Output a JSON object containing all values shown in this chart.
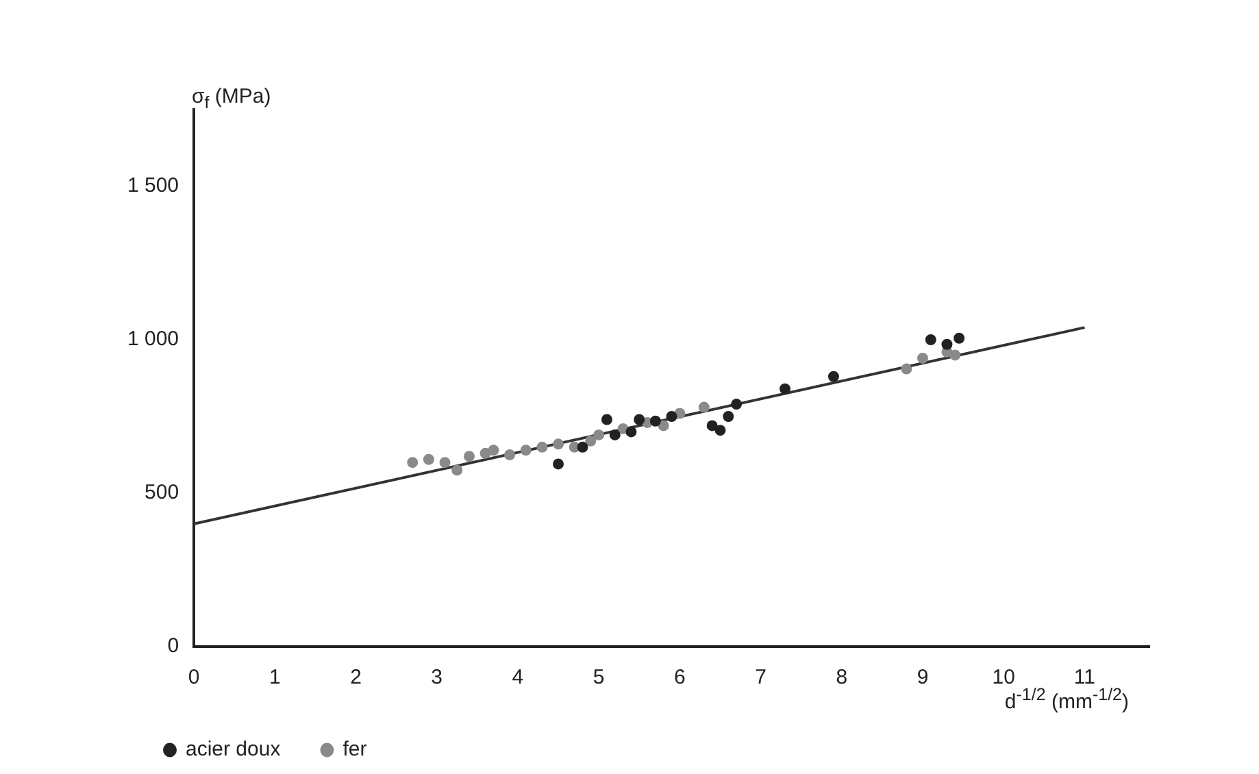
{
  "chart_data": {
    "type": "scatter",
    "xlabel": "d$^{-1/2}$ (mm$^{-1/2}$)",
    "ylabel": "σ$_{f}$ (MPa)",
    "xlim": [
      0,
      11.8
    ],
    "xticks": [
      0,
      1,
      2,
      3,
      4,
      5,
      6,
      7,
      8,
      9,
      10,
      11
    ],
    "ylim": [
      0,
      1750
    ],
    "yticks": [
      0,
      500,
      {
        "value": 1000,
        "label": "1 000"
      },
      {
        "value": 1500,
        "label": "1 500"
      }
    ],
    "grid": false,
    "legend": "bottom left",
    "marker": "circle",
    "series": [
      {
        "name": "acier doux",
        "color": "#222222",
        "x": [
          4.5,
          4.8,
          5.1,
          5.2,
          5.4,
          5.5,
          5.7,
          5.9,
          6.4,
          6.5,
          6.6,
          6.7,
          7.3,
          7.9,
          9.1,
          9.3,
          9.45
        ],
        "values": [
          595,
          650,
          740,
          690,
          700,
          740,
          735,
          750,
          720,
          705,
          750,
          790,
          840,
          880,
          1000,
          985,
          1005
        ]
      },
      {
        "name": "fer",
        "color": "#8a8a8a",
        "x": [
          2.7,
          2.9,
          3.1,
          3.25,
          3.4,
          3.6,
          3.7,
          3.9,
          4.1,
          4.3,
          4.5,
          4.7,
          4.9,
          5.0,
          5.3,
          5.6,
          5.8,
          6.0,
          6.3,
          8.8,
          9.0,
          9.3,
          9.4
        ],
        "values": [
          600,
          610,
          600,
          575,
          620,
          630,
          640,
          625,
          640,
          650,
          660,
          650,
          670,
          690,
          710,
          730,
          720,
          760,
          780,
          905,
          940,
          960,
          950
        ]
      },
      {
        "type": "line",
        "color": "#333333",
        "x": [
          0,
          11
        ],
        "values": [
          400,
          1040
        ],
        "marker": "none"
      }
    ]
  }
}
